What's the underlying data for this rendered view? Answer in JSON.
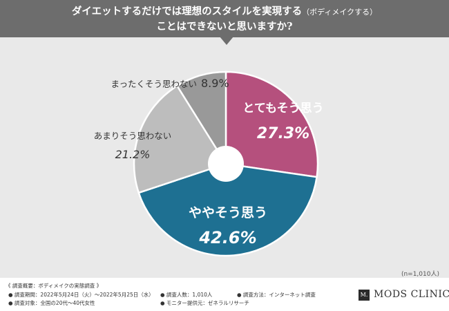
{
  "header": {
    "title_line1": "ダイエットするだけでは理想のスタイルを実現する",
    "title_paren": "（ボディメイクする）",
    "title_line2": "ことはできないと思いますか?"
  },
  "chart_data": {
    "type": "pie",
    "style": "donut",
    "n_note": "(n=1,010人)",
    "slices": [
      {
        "label": "とてもそう思う",
        "value": 27.3,
        "display": "27.3%",
        "color": "#b5507d",
        "label_color": "#ffffff",
        "label_position": "inside"
      },
      {
        "label": "ややそう思う",
        "value": 42.6,
        "display": "42.6%",
        "color": "#1e7092",
        "label_color": "#ffffff",
        "label_position": "inside"
      },
      {
        "label": "あまりそう思わない",
        "value": 21.2,
        "display": "21.2%",
        "color": "#bdbdbd",
        "label_color": "#333333",
        "label_position": "outside"
      },
      {
        "label": "まったくそう思わない",
        "value": 8.9,
        "display": "8.9%",
        "color": "#999999",
        "label_color": "#333333",
        "label_position": "outside"
      }
    ]
  },
  "footer": {
    "heading": "《 調査概要：ボディメイクの実態調査 》",
    "period": "● 調査期間：2022年5月24日（火）～2022年5月25日（水）",
    "target": "● 調査対象：全国の20代～40代女性",
    "count": "● 調査人数：1,010人",
    "provider": "● モニター提供元：ゼネラルリサーチ",
    "method": "● 調査方法：インターネット調査"
  },
  "logo": {
    "mark": "M.",
    "text": "MODS CLINIC"
  }
}
